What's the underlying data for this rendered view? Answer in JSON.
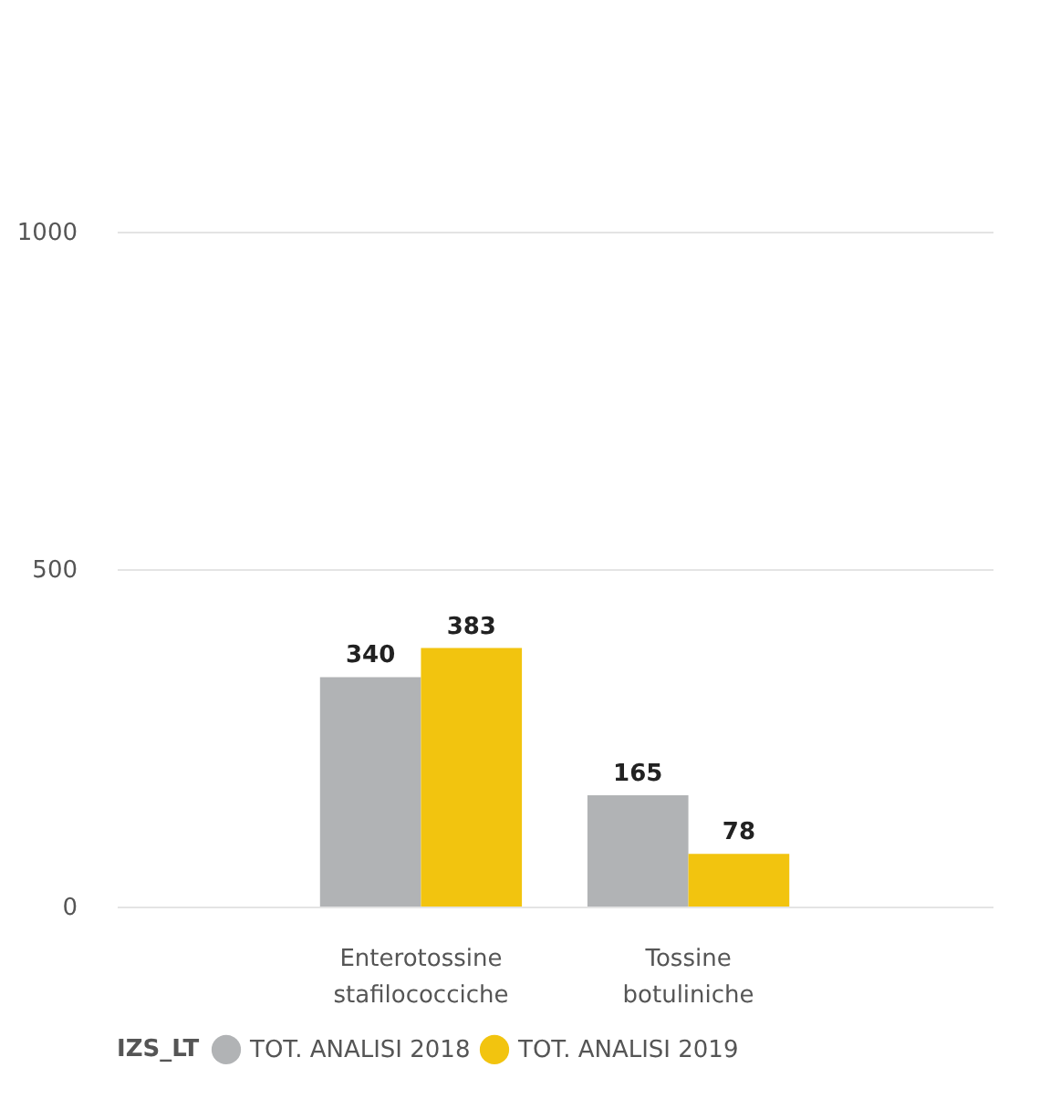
{
  "chart_data": {
    "type": "bar",
    "categories": [
      "Enterotossine stafilococciche",
      "Tossine botuliniche"
    ],
    "series": [
      {
        "name": "TOT. ANALISI 2018",
        "color": "#b1b3b5",
        "values": [
          340,
          165
        ]
      },
      {
        "name": "TOT. ANALISI 2019",
        "color": "#f2c40f",
        "values": [
          383,
          78
        ]
      }
    ],
    "ylim": [
      0,
      1000
    ],
    "yticks": [
      0,
      500,
      1000
    ],
    "grid": "y",
    "data_labels": true,
    "legend": "bottom",
    "legend_title": "IZS_LT"
  }
}
